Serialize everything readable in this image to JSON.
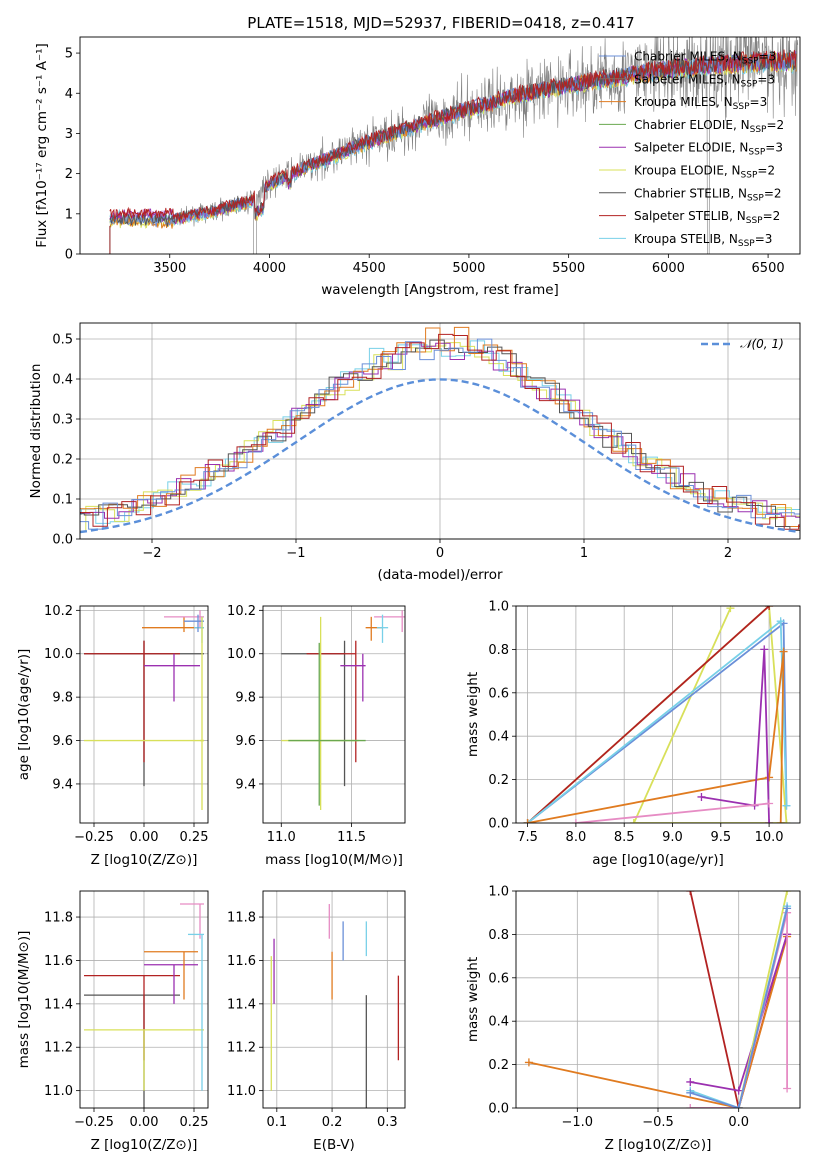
{
  "title": "PLATE=1518, MJD=52937, FIBERID=0418, z=0.417",
  "colors": {
    "Chabrier MILES": "#6a8fd8",
    "Salpeter MILES": "#8a6b5a",
    "Kroupa MILES": "#e07b20",
    "Chabrier ELODIE": "#6aa84f",
    "Salpeter ELODIE": "#9b30b0",
    "Kroupa ELODIE": "#d8e05a",
    "Chabrier STELIB": "#555555",
    "Salpeter STELIB": "#b22222",
    "Kroupa STELIB": "#78d0e8",
    "pink": "#e68cc4",
    "gaussian": "#5b8fd9",
    "data": "#808080"
  },
  "chart_data": [
    {
      "id": "spectrum",
      "type": "line",
      "title": "PLATE=1518, MJD=52937, FIBERID=0418, z=0.417",
      "xlabel": "wavelength [Angstrom, rest frame]",
      "ylabel": "Flux [f_λ 10^-17 erg cm^-2 s^-1 A^-1]",
      "xlim": [
        3050,
        6660
      ],
      "ylim": [
        0,
        5.4
      ],
      "xticks": [
        3500,
        4000,
        4500,
        5000,
        5500,
        6000,
        6500
      ],
      "yticks": [
        0,
        1,
        2,
        3,
        4,
        5
      ],
      "legend_position": "top-right",
      "legend": [
        {
          "name": "Chabrier MILES, N",
          "sub": "SSP",
          "tail": "=3"
        },
        {
          "name": "Salpeter MILES, N",
          "sub": "SSP",
          "tail": "=3"
        },
        {
          "name": "Kroupa MILES, N",
          "sub": "SSP",
          "tail": "=3"
        },
        {
          "name": "Chabrier ELODIE, N",
          "sub": "SSP",
          "tail": "=2"
        },
        {
          "name": "Salpeter ELODIE, N",
          "sub": "SSP",
          "tail": "=3"
        },
        {
          "name": "Kroupa ELODIE, N",
          "sub": "SSP",
          "tail": "=2"
        },
        {
          "name": "Chabrier STELIB, N",
          "sub": "SSP",
          "tail": "=2"
        },
        {
          "name": "Salpeter STELIB, N",
          "sub": "SSP",
          "tail": "=2"
        },
        {
          "name": "Kroupa STELIB, N",
          "sub": "SSP",
          "tail": "=3"
        }
      ],
      "continuum_x": [
        3200,
        3500,
        3700,
        3900,
        4000,
        4200,
        4500,
        4800,
        5000,
        5200,
        5500,
        5800,
        6000,
        6200,
        6500
      ],
      "continuum_y": [
        0.75,
        0.85,
        1.05,
        1.3,
        1.75,
        2.2,
        2.8,
        3.3,
        3.6,
        3.9,
        4.2,
        4.45,
        4.6,
        4.7,
        4.8
      ]
    },
    {
      "id": "residuals",
      "type": "line",
      "xlabel": "(data-model)/error",
      "ylabel": "Normed distribution",
      "xlim": [
        -2.5,
        2.5
      ],
      "ylim": [
        0,
        0.54
      ],
      "xticks": [
        -2,
        -1,
        0,
        1,
        2
      ],
      "yticks": [
        0.0,
        0.1,
        0.2,
        0.3,
        0.4,
        0.5
      ],
      "legend_position": "top-right",
      "gaussian_label": "N(0,1)",
      "bin_width": 0.1,
      "hist_peak": [
        0.47,
        0.51,
        0.5,
        0.48,
        0.45,
        0.49,
        0.46,
        0.51,
        0.5
      ]
    },
    {
      "id": "age_vs_Z",
      "type": "scatter",
      "xlabel": "Z [log10(Z/Z⊙)]",
      "ylabel": "age [log10(age/yr)]",
      "xlim": [
        -0.32,
        0.32
      ],
      "ylim": [
        9.22,
        10.22
      ],
      "xticks": [
        -0.25,
        0.0,
        0.25
      ],
      "yticks": [
        9.4,
        9.6,
        9.8,
        10.0,
        10.2
      ],
      "points": [
        {
          "c": "Chabrier STELIB",
          "x": 0.0,
          "y": 10.0,
          "xe": [
            -0.3,
            0.3
          ],
          "ye": [
            9.39,
            10.06
          ]
        },
        {
          "c": "Salpeter STELIB",
          "x": 0.0,
          "y": 10.0,
          "xe": [
            -0.3,
            0.18
          ],
          "ye": [
            9.5,
            10.06
          ]
        },
        {
          "c": "Kroupa ELODIE",
          "x": 0.0,
          "y": 9.6,
          "xe": [
            -0.3,
            0.3
          ],
          "ye": [
            9.6,
            9.6
          ]
        },
        {
          "c": "Salpeter ELODIE",
          "x": 0.15,
          "y": 9.945,
          "xe": [
            0.0,
            0.28
          ],
          "ye": [
            9.78,
            10.0
          ]
        },
        {
          "c": "Kroupa MILES",
          "x": 0.2,
          "y": 10.12,
          "xe": [
            -0.01,
            0.3
          ],
          "ye": [
            10.1,
            10.17
          ]
        },
        {
          "c": "pink",
          "x": 0.28,
          "y": 10.17,
          "xe": [
            0.1,
            0.3
          ],
          "ye": [
            10.12,
            10.2
          ]
        },
        {
          "c": "Kroupa STELIB",
          "x": 0.29,
          "y": 10.12,
          "xe": [
            0.25,
            0.3
          ],
          "ye": [
            10.05,
            10.17
          ]
        },
        {
          "c": "Chabrier MILES",
          "x": 0.27,
          "y": 10.15,
          "xe": [
            0.2,
            0.3
          ],
          "ye": [
            10.1,
            10.18
          ]
        },
        {
          "c": "Kroupa ELODIE",
          "x": 0.29,
          "y": 9.6,
          "xe": [
            0.28,
            0.3
          ],
          "ye": [
            9.28,
            10.17
          ]
        }
      ]
    },
    {
      "id": "age_vs_mass",
      "type": "scatter",
      "xlabel": "mass [log10(M/M⊙)]",
      "xlim": [
        10.87,
        11.88
      ],
      "ylim": [
        9.22,
        10.22
      ],
      "xticks": [
        11.0,
        11.5
      ],
      "yticks": [
        9.4,
        9.6,
        9.8,
        10.0,
        10.2
      ],
      "points": [
        {
          "c": "Chabrier STELIB",
          "x": 11.45,
          "y": 10.0,
          "xe": [
            11.0,
            11.45
          ],
          "ye": [
            9.39,
            10.06
          ]
        },
        {
          "c": "Salpeter STELIB",
          "x": 11.53,
          "y": 10.0,
          "xe": [
            11.18,
            11.53
          ],
          "ye": [
            9.5,
            10.06
          ]
        },
        {
          "c": "Kroupa ELODIE",
          "x": 11.28,
          "y": 9.6,
          "xe": [
            11.0,
            11.55
          ],
          "ye": [
            9.28,
            10.17
          ]
        },
        {
          "c": "Chabrier ELODIE",
          "x": 11.27,
          "y": 9.6,
          "xe": [
            11.05,
            11.6
          ],
          "ye": [
            9.3,
            10.05
          ]
        },
        {
          "c": "Salpeter ELODIE",
          "x": 11.58,
          "y": 9.945,
          "xe": [
            11.42,
            11.6
          ],
          "ye": [
            9.78,
            10.0
          ]
        },
        {
          "c": "Kroupa MILES",
          "x": 11.64,
          "y": 10.12,
          "xe": [
            11.6,
            11.72
          ],
          "ye": [
            10.06,
            10.17
          ]
        },
        {
          "c": "pink",
          "x": 11.86,
          "y": 10.17,
          "xe": [
            11.66,
            11.88
          ],
          "ye": [
            10.1,
            10.2
          ]
        },
        {
          "c": "Kroupa STELIB",
          "x": 11.72,
          "y": 10.12,
          "xe": [
            11.68,
            11.76
          ],
          "ye": [
            10.05,
            10.18
          ]
        }
      ]
    },
    {
      "id": "weight_vs_age",
      "type": "line",
      "xlabel": "age [log10(age/yr)]",
      "ylabel": "mass weight",
      "xlim": [
        7.38,
        10.32
      ],
      "ylim": [
        0,
        1
      ],
      "xticks": [
        7.5,
        8.0,
        8.5,
        9.0,
        9.5,
        10.0
      ],
      "yticks": [
        0.0,
        0.2,
        0.4,
        0.6,
        0.8,
        1.0
      ],
      "series": [
        {
          "c": "Kroupa ELODIE",
          "x": [
            8.6,
            9.6
          ],
          "y": [
            0.0,
            0.99
          ]
        },
        {
          "c": "Kroupa ELODIE",
          "x": [
            7.5,
            10.0,
            10.18,
            8.6
          ],
          "y": [
            0.0,
            1.0,
            0.0,
            0.0
          ]
        },
        {
          "c": "Salpeter STELIB",
          "x": [
            7.5,
            10.0
          ],
          "y": [
            0.0,
            1.0
          ]
        },
        {
          "c": "Chabrier MILES",
          "x": [
            7.5,
            10.15,
            10.18
          ],
          "y": [
            0.0,
            0.92,
            0.08
          ]
        },
        {
          "c": "Kroupa STELIB",
          "x": [
            7.5,
            10.12,
            10.18
          ],
          "y": [
            0.0,
            0.93,
            0.08
          ]
        },
        {
          "c": "Kroupa MILES",
          "x": [
            7.5,
            10.0,
            10.15,
            10.12
          ],
          "y": [
            0.0,
            0.21,
            0.79,
            0.0
          ]
        },
        {
          "c": "Salpeter ELODIE",
          "x": [
            9.3,
            9.85,
            9.95,
            10.0
          ],
          "y": [
            0.12,
            0.08,
            0.8,
            0.0
          ]
        },
        {
          "c": "pink",
          "x": [
            8.0,
            10.0
          ],
          "y": [
            0.0,
            0.09
          ]
        }
      ]
    },
    {
      "id": "mass_vs_Z",
      "type": "scatter",
      "xlabel": "Z [log10(Z/Z⊙)]",
      "ylabel": "mass [log10(M/M⊙)]",
      "xlim": [
        -0.32,
        0.32
      ],
      "ylim": [
        10.92,
        11.92
      ],
      "xticks": [
        -0.25,
        0.0,
        0.25
      ],
      "yticks": [
        11.0,
        11.2,
        11.4,
        11.6,
        11.8
      ],
      "points": [
        {
          "c": "Chabrier STELIB",
          "x": 0.0,
          "y": 11.44,
          "xe": [
            -0.3,
            0.18
          ],
          "ye": [
            10.9,
            11.44
          ]
        },
        {
          "c": "Salpeter STELIB",
          "x": 0.0,
          "y": 11.53,
          "xe": [
            -0.3,
            0.18
          ],
          "ye": [
            11.14,
            11.53
          ]
        },
        {
          "c": "Kroupa ELODIE",
          "x": 0.0,
          "y": 11.28,
          "xe": [
            -0.3,
            0.3
          ],
          "ye": [
            11.0,
            11.28
          ]
        },
        {
          "c": "Salpeter ELODIE",
          "x": 0.15,
          "y": 11.58,
          "xe": [
            0.0,
            0.27
          ],
          "ye": [
            11.4,
            11.58
          ]
        },
        {
          "c": "Kroupa MILES",
          "x": 0.2,
          "y": 11.64,
          "xe": [
            0.0,
            0.27
          ],
          "ye": [
            11.42,
            11.64
          ]
        },
        {
          "c": "pink",
          "x": 0.28,
          "y": 11.86,
          "xe": [
            0.18,
            0.3
          ],
          "ye": [
            11.7,
            11.86
          ]
        },
        {
          "c": "Kroupa STELIB",
          "x": 0.29,
          "y": 11.72,
          "xe": [
            0.22,
            0.3
          ],
          "ye": [
            11.0,
            11.72
          ]
        }
      ]
    },
    {
      "id": "mass_vs_EBV",
      "type": "scatter",
      "xlabel": "E(B-V)",
      "xlim": [
        0.075,
        0.332
      ],
      "ylim": [
        10.92,
        11.92
      ],
      "xticks": [
        0.1,
        0.2,
        0.3
      ],
      "yticks": [
        11.0,
        11.2,
        11.4,
        11.6,
        11.8
      ],
      "points": [
        {
          "c": "Kroupa ELODIE",
          "x": 0.09,
          "y": 11.28,
          "ye": [
            11.0,
            11.62
          ]
        },
        {
          "c": "Salpeter ELODIE",
          "x": 0.095,
          "y": 11.58,
          "ye": [
            11.4,
            11.7
          ]
        },
        {
          "c": "pink",
          "x": 0.195,
          "y": 11.86,
          "ye": [
            11.7,
            11.86
          ]
        },
        {
          "c": "Kroupa MILES",
          "x": 0.2,
          "y": 11.64,
          "ye": [
            11.42,
            11.64
          ]
        },
        {
          "c": "Chabrier MILES",
          "x": 0.22,
          "y": 11.72,
          "ye": [
            11.6,
            11.78
          ]
        },
        {
          "c": "Kroupa STELIB",
          "x": 0.262,
          "y": 11.72,
          "ye": [
            11.62,
            11.78
          ]
        },
        {
          "c": "Chabrier STELIB",
          "x": 0.262,
          "y": 11.44,
          "ye": [
            10.9,
            11.44
          ]
        },
        {
          "c": "Salpeter STELIB",
          "x": 0.32,
          "y": 11.53,
          "ye": [
            11.14,
            11.53
          ]
        }
      ]
    },
    {
      "id": "weight_vs_Z",
      "type": "line",
      "xlabel": "Z [log10(Z/Z⊙)]",
      "ylabel": "mass weight",
      "xlim": [
        -1.38,
        0.38
      ],
      "ylim": [
        0,
        1
      ],
      "xticks": [
        -1.0,
        -0.5,
        0.0
      ],
      "yticks": [
        0.0,
        0.2,
        0.4,
        0.6,
        0.8,
        1.0
      ],
      "series": [
        {
          "c": "Salpeter STELIB",
          "x": [
            -0.3,
            0.0,
            0.3
          ],
          "y": [
            1.0,
            0.0,
            0.8
          ]
        },
        {
          "c": "Kroupa MILES",
          "x": [
            -1.3,
            0.0,
            0.3
          ],
          "y": [
            0.21,
            0.0,
            0.79
          ]
        },
        {
          "c": "Salpeter ELODIE",
          "x": [
            -0.3,
            0.0,
            0.3
          ],
          "y": [
            0.12,
            0.08,
            0.8
          ]
        },
        {
          "c": "pink",
          "x": [
            -0.3,
            0.0,
            0.3,
            0.3
          ],
          "y": [
            0.0,
            0.0,
            0.9,
            0.09
          ]
        },
        {
          "c": "Kroupa ELODIE",
          "x": [
            0.0,
            0.3
          ],
          "y": [
            0.0,
            1.0
          ]
        },
        {
          "c": "Kroupa STELIB",
          "x": [
            -0.3,
            0.0,
            0.3
          ],
          "y": [
            0.08,
            0.0,
            0.93
          ]
        },
        {
          "c": "Chabrier MILES",
          "x": [
            -0.3,
            0.0,
            0.3
          ],
          "y": [
            0.07,
            0.0,
            0.92
          ]
        }
      ]
    }
  ]
}
